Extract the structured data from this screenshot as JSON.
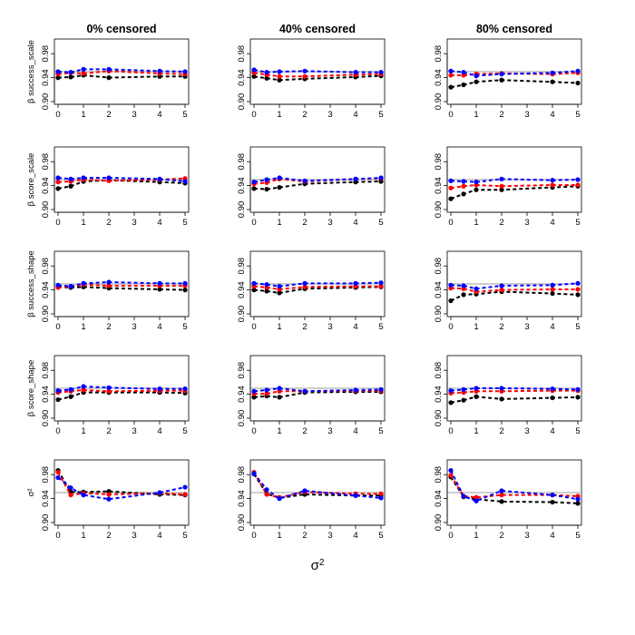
{
  "chart_data": {
    "type": "line",
    "layout": "5 rows x 3 columns small multiples",
    "columns": [
      "0% censored",
      "40% censored",
      "80% censored"
    ],
    "row_labels": [
      "β success_scale",
      "β score_scale",
      "β success_shape",
      "β score_shape",
      "σ²"
    ],
    "x": [
      0,
      0.5,
      1,
      2,
      4,
      5
    ],
    "xticks": [
      0,
      1,
      2,
      3,
      4,
      5
    ],
    "xlim": [
      0,
      5
    ],
    "ylim": [
      0.9,
      1.0
    ],
    "yticks": [
      "0.90",
      "0.94",
      "0.98"
    ],
    "ytick_values": [
      0.9,
      0.94,
      0.98
    ],
    "reference_line": 0.95,
    "xlabel_base": "σ",
    "xlabel_sup": "2",
    "series_colors": [
      "#000000",
      "#ff0000",
      "#0000ff"
    ],
    "reference_color": "#bebebe",
    "panels": [
      [
        {
          "series": [
            {
              "values": [
                0.94,
                0.941,
                0.944,
                0.94,
                0.942,
                0.942
              ]
            },
            {
              "values": [
                0.946,
                0.948,
                0.947,
                0.951,
                0.947,
                0.946
              ]
            },
            {
              "values": [
                0.95,
                0.949,
                0.954,
                0.954,
                0.951,
                0.95
              ]
            }
          ]
        },
        {
          "series": [
            {
              "values": [
                0.942,
                0.939,
                0.936,
                0.938,
                0.941,
                0.943
              ]
            },
            {
              "values": [
                0.948,
                0.945,
                0.942,
                0.942,
                0.945,
                0.946
              ]
            },
            {
              "values": [
                0.953,
                0.949,
                0.95,
                0.951,
                0.949,
                0.949
              ]
            }
          ]
        },
        {
          "series": [
            {
              "values": [
                0.924,
                0.928,
                0.933,
                0.936,
                0.933,
                0.931
              ]
            },
            {
              "values": [
                0.944,
                0.944,
                0.946,
                0.947,
                0.946,
                0.948
              ]
            },
            {
              "values": [
                0.951,
                0.949,
                0.943,
                0.946,
                0.948,
                0.951
              ]
            }
          ]
        }
      ],
      [
        {
          "series": [
            {
              "values": [
                0.935,
                0.939,
                0.947,
                0.949,
                0.946,
                0.944
              ]
            },
            {
              "values": [
                0.946,
                0.947,
                0.95,
                0.948,
                0.95,
                0.952
              ]
            },
            {
              "values": [
                0.953,
                0.951,
                0.953,
                0.953,
                0.951,
                0.947
              ]
            }
          ]
        },
        {
          "series": [
            {
              "values": [
                0.935,
                0.934,
                0.937,
                0.943,
                0.946,
                0.947
              ]
            },
            {
              "values": [
                0.943,
                0.945,
                0.951,
                0.947,
                0.951,
                0.952
              ]
            },
            {
              "values": [
                0.946,
                0.95,
                0.953,
                0.948,
                0.951,
                0.953
              ]
            }
          ]
        },
        {
          "series": [
            {
              "values": [
                0.918,
                0.926,
                0.933,
                0.933,
                0.937,
                0.939
              ]
            },
            {
              "values": [
                0.936,
                0.939,
                0.941,
                0.939,
                0.941,
                0.941
              ]
            },
            {
              "values": [
                0.948,
                0.947,
                0.946,
                0.951,
                0.949,
                0.95
              ]
            }
          ]
        }
      ],
      [
        {
          "series": [
            {
              "values": [
                0.945,
                0.944,
                0.945,
                0.943,
                0.941,
                0.94
              ]
            },
            {
              "values": [
                0.944,
                0.946,
                0.949,
                0.947,
                0.947,
                0.947
              ]
            },
            {
              "values": [
                0.948,
                0.946,
                0.951,
                0.953,
                0.951,
                0.951
              ]
            }
          ]
        },
        {
          "series": [
            {
              "values": [
                0.94,
                0.938,
                0.935,
                0.942,
                0.944,
                0.945
              ]
            },
            {
              "values": [
                0.946,
                0.944,
                0.941,
                0.945,
                0.946,
                0.946
              ]
            },
            {
              "values": [
                0.951,
                0.949,
                0.946,
                0.951,
                0.951,
                0.952
              ]
            }
          ]
        },
        {
          "series": [
            {
              "values": [
                0.922,
                0.932,
                0.933,
                0.937,
                0.934,
                0.932
              ]
            },
            {
              "values": [
                0.943,
                0.942,
                0.937,
                0.94,
                0.941,
                0.941
              ]
            },
            {
              "values": [
                0.948,
                0.947,
                0.942,
                0.947,
                0.948,
                0.951
              ]
            }
          ]
        }
      ],
      [
        {
          "series": [
            {
              "values": [
                0.931,
                0.936,
                0.943,
                0.943,
                0.943,
                0.942
              ]
            },
            {
              "values": [
                0.943,
                0.945,
                0.947,
                0.945,
                0.946,
                0.946
              ]
            },
            {
              "values": [
                0.946,
                0.948,
                0.953,
                0.951,
                0.949,
                0.949
              ]
            }
          ]
        },
        {
          "series": [
            {
              "values": [
                0.935,
                0.937,
                0.935,
                0.943,
                0.944,
                0.944
              ]
            },
            {
              "values": [
                0.941,
                0.941,
                0.945,
                0.945,
                0.946,
                0.946
              ]
            },
            {
              "values": [
                0.945,
                0.947,
                0.95,
                0.945,
                0.947,
                0.948
              ]
            }
          ]
        },
        {
          "series": [
            {
              "values": [
                0.926,
                0.93,
                0.936,
                0.932,
                0.934,
                0.935
              ]
            },
            {
              "values": [
                0.942,
                0.943,
                0.945,
                0.945,
                0.946,
                0.946
              ]
            },
            {
              "values": [
                0.946,
                0.948,
                0.95,
                0.95,
                0.949,
                0.948
              ]
            }
          ]
        }
      ],
      [
        {
          "series": [
            {
              "values": [
                0.987,
                0.951,
                0.951,
                0.952,
                0.947,
                0.946
              ]
            },
            {
              "values": [
                0.984,
                0.946,
                0.949,
                0.947,
                0.949,
                0.947
              ]
            },
            {
              "values": [
                0.975,
                0.958,
                0.946,
                0.939,
                0.95,
                0.959
              ]
            }
          ]
        },
        {
          "series": [
            {
              "values": [
                0.981,
                0.948,
                0.941,
                0.947,
                0.945,
                0.945
              ]
            },
            {
              "values": [
                0.984,
                0.947,
                0.942,
                0.951,
                0.948,
                0.948
              ]
            },
            {
              "values": [
                0.982,
                0.955,
                0.94,
                0.953,
                0.945,
                0.941
              ]
            }
          ]
        },
        {
          "series": [
            {
              "values": [
                0.976,
                0.943,
                0.939,
                0.935,
                0.934,
                0.932
              ]
            },
            {
              "values": [
                0.979,
                0.944,
                0.942,
                0.946,
                0.946,
                0.944
              ]
            },
            {
              "values": [
                0.987,
                0.944,
                0.936,
                0.953,
                0.946,
                0.939
              ]
            }
          ]
        }
      ]
    ]
  }
}
